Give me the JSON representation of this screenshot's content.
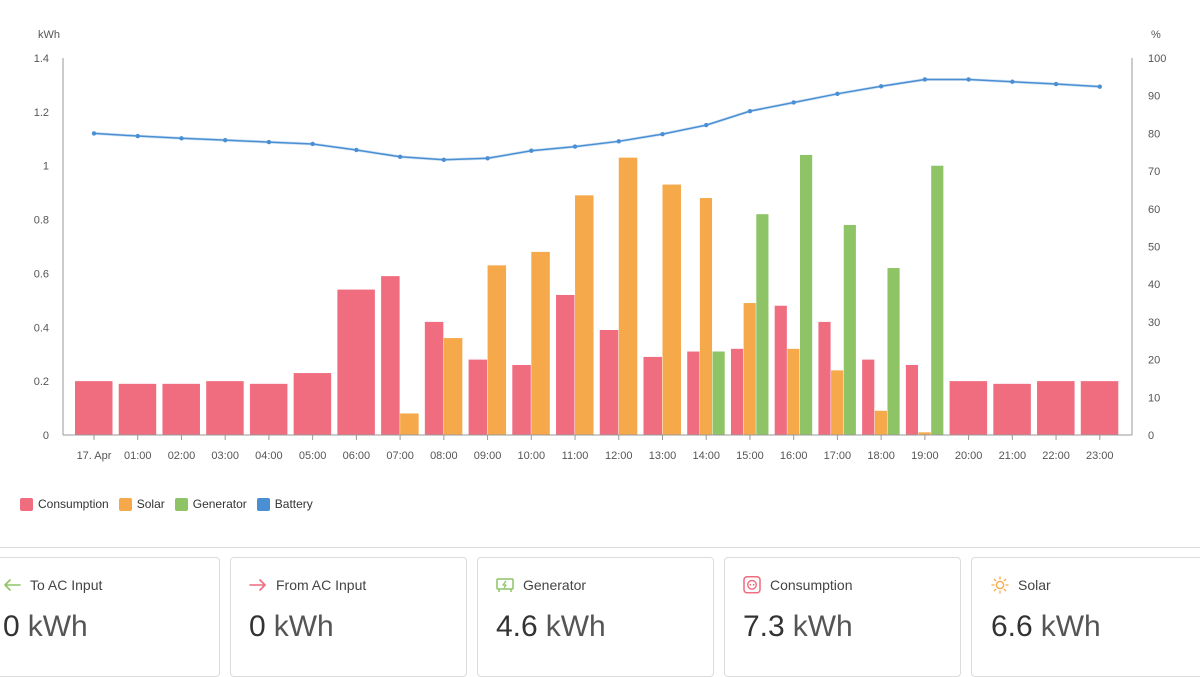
{
  "chart_data": {
    "type": "bar",
    "y_left_unit": "kWh",
    "y_right_unit": "%",
    "y_left_ticks": [
      "0",
      "0.2",
      "0.4",
      "0.6",
      "0.8",
      "1",
      "1.2",
      "1.4"
    ],
    "y_right_ticks": [
      "0",
      "10",
      "20",
      "30",
      "40",
      "50",
      "60",
      "70",
      "80",
      "90",
      "100"
    ],
    "ylim_left": [
      0,
      1.4
    ],
    "ylim_right": [
      0,
      100
    ],
    "categories": [
      "17. Apr",
      "01:00",
      "02:00",
      "03:00",
      "04:00",
      "05:00",
      "06:00",
      "07:00",
      "08:00",
      "09:00",
      "10:00",
      "11:00",
      "12:00",
      "13:00",
      "14:00",
      "15:00",
      "16:00",
      "17:00",
      "18:00",
      "19:00",
      "20:00",
      "21:00",
      "22:00",
      "23:00"
    ],
    "series": [
      {
        "name": "Consumption",
        "color": "#f06c7f",
        "axis": "left",
        "values": [
          0.2,
          0.19,
          0.19,
          0.2,
          0.19,
          0.23,
          0.54,
          0.59,
          0.42,
          0.28,
          0.26,
          0.52,
          0.39,
          0.29,
          0.31,
          0.32,
          0.48,
          0.42,
          0.28,
          0.26,
          0.2,
          0.19,
          0.2,
          0.2
        ]
      },
      {
        "name": "Solar",
        "color": "#f5a94a",
        "axis": "left",
        "values": [
          0,
          0,
          0,
          0,
          0,
          0,
          0,
          0.08,
          0.36,
          0.63,
          0.68,
          0.89,
          1.03,
          0.93,
          0.88,
          0.49,
          0.32,
          0.24,
          0.09,
          0.01,
          0,
          0,
          0,
          0
        ]
      },
      {
        "name": "Generator",
        "color": "#8ec466",
        "axis": "left",
        "values": [
          0,
          0,
          0,
          0,
          0,
          0,
          0,
          0,
          0,
          0,
          0,
          0,
          0,
          0,
          0.31,
          0.82,
          1.04,
          0.78,
          0.62,
          1.0,
          0,
          0,
          0,
          0
        ]
      },
      {
        "name": "Battery",
        "color": "#4a8fd4",
        "axis": "right",
        "type": "line",
        "values": [
          80,
          79.3,
          78.7,
          78.2,
          77.7,
          77.2,
          75.6,
          73.8,
          73,
          73.4,
          75.4,
          76.5,
          77.9,
          79.8,
          82.2,
          85.9,
          88.2,
          90.5,
          92.5,
          94.3,
          94.3,
          93.7,
          93.1,
          92.4
        ]
      }
    ]
  },
  "legend": {
    "items": [
      {
        "label": "Consumption",
        "color": "#f06c7f"
      },
      {
        "label": "Solar",
        "color": "#f5a94a"
      },
      {
        "label": "Generator",
        "color": "#8ec466"
      },
      {
        "label": "Battery",
        "color": "#4a8fd4"
      }
    ]
  },
  "cards": [
    {
      "label": "To AC Input",
      "value": "0",
      "unit": "kWh",
      "icon": "arrow-left-icon",
      "icon_color": "#8ec466"
    },
    {
      "label": "From AC Input",
      "value": "0",
      "unit": "kWh",
      "icon": "arrow-right-icon",
      "icon_color": "#f06c7f"
    },
    {
      "label": "Generator",
      "value": "4.6",
      "unit": "kWh",
      "icon": "generator-icon",
      "icon_color": "#8ec466"
    },
    {
      "label": "Consumption",
      "value": "7.3",
      "unit": "kWh",
      "icon": "outlet-icon",
      "icon_color": "#f06c7f"
    },
    {
      "label": "Solar",
      "value": "6.6",
      "unit": "kWh",
      "icon": "sun-icon",
      "icon_color": "#f5a94a"
    }
  ]
}
